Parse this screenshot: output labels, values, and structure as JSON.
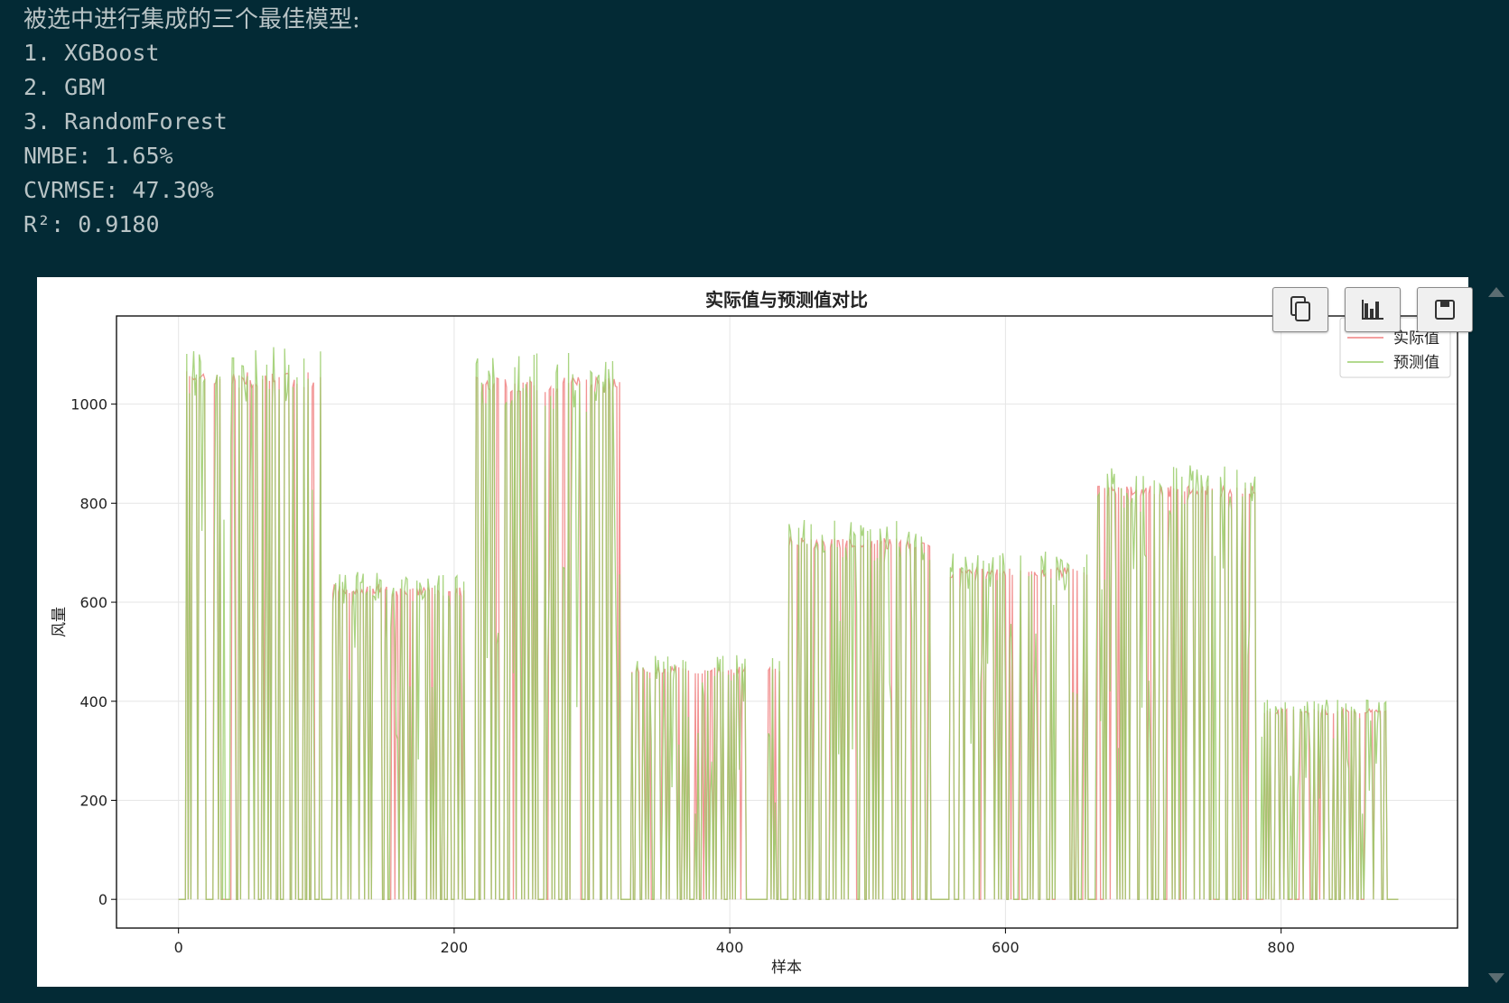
{
  "output": {
    "heading": "被选中进行集成的三个最佳模型:",
    "lines": [
      "1. XGBoost",
      "2. GBM",
      "3. RandomForest",
      "NMBE: 1.65%",
      "CVRMSE: 47.30%",
      "R²: 0.9180"
    ]
  },
  "toolbar": {
    "buttons": [
      {
        "icon": "copy-icon"
      },
      {
        "icon": "bar-chart-icon"
      },
      {
        "icon": "save-icon"
      }
    ]
  },
  "colors": {
    "background": "#032a35",
    "actual": "#f08080",
    "predicted": "#9acd6a"
  },
  "chart_data": {
    "type": "line",
    "title": "实际值与预测值对比",
    "xlabel": "样本",
    "ylabel": "风量",
    "xlim": [
      -45,
      928
    ],
    "ylim": [
      -58,
      1178
    ],
    "xticks": [
      0,
      200,
      400,
      600,
      800
    ],
    "yticks": [
      0,
      200,
      400,
      600,
      800,
      1000
    ],
    "grid": true,
    "legend_position": "top-right",
    "segments": [
      {
        "start": 0,
        "end": 4,
        "actual": 0,
        "predicted": 0
      },
      {
        "start": 4,
        "end": 20,
        "actual": 1070,
        "predicted": 1020
      },
      {
        "start": 20,
        "end": 26,
        "actual": 0,
        "predicted": 0
      },
      {
        "start": 26,
        "end": 104,
        "actual": 1065,
        "predicted": 1010
      },
      {
        "start": 104,
        "end": 112,
        "actual": 0,
        "predicted": 0
      },
      {
        "start": 112,
        "end": 152,
        "actual": 635,
        "predicted": 625
      },
      {
        "start": 152,
        "end": 154,
        "actual": 0,
        "predicted": 0
      },
      {
        "start": 154,
        "end": 208,
        "actual": 630,
        "predicted": 620
      },
      {
        "start": 208,
        "end": 214,
        "actual": 0,
        "predicted": 0
      },
      {
        "start": 214,
        "end": 322,
        "actual": 1055,
        "predicted": 1010
      },
      {
        "start": 322,
        "end": 328,
        "actual": 0,
        "predicted": 0
      },
      {
        "start": 328,
        "end": 412,
        "actual": 470,
        "predicted": 460
      },
      {
        "start": 412,
        "end": 428,
        "actual": 0,
        "predicted": 0
      },
      {
        "start": 428,
        "end": 438,
        "actual": 470,
        "predicted": 455
      },
      {
        "start": 438,
        "end": 442,
        "actual": 0,
        "predicted": 0
      },
      {
        "start": 442,
        "end": 546,
        "actual": 730,
        "predicted": 710
      },
      {
        "start": 546,
        "end": 560,
        "actual": 0,
        "predicted": 0
      },
      {
        "start": 560,
        "end": 660,
        "actual": 670,
        "predicted": 650
      },
      {
        "start": 660,
        "end": 666,
        "actual": 0,
        "predicted": 0
      },
      {
        "start": 666,
        "end": 782,
        "actual": 835,
        "predicted": 800
      },
      {
        "start": 782,
        "end": 786,
        "actual": 0,
        "predicted": 0
      },
      {
        "start": 786,
        "end": 878,
        "actual": 385,
        "predicted": 380
      },
      {
        "start": 878,
        "end": 886,
        "actual": 0,
        "predicted": 0
      }
    ],
    "series": [
      {
        "name": "实际值",
        "color": "#f08080"
      },
      {
        "name": "预测值",
        "color": "#9acd6a"
      }
    ]
  }
}
